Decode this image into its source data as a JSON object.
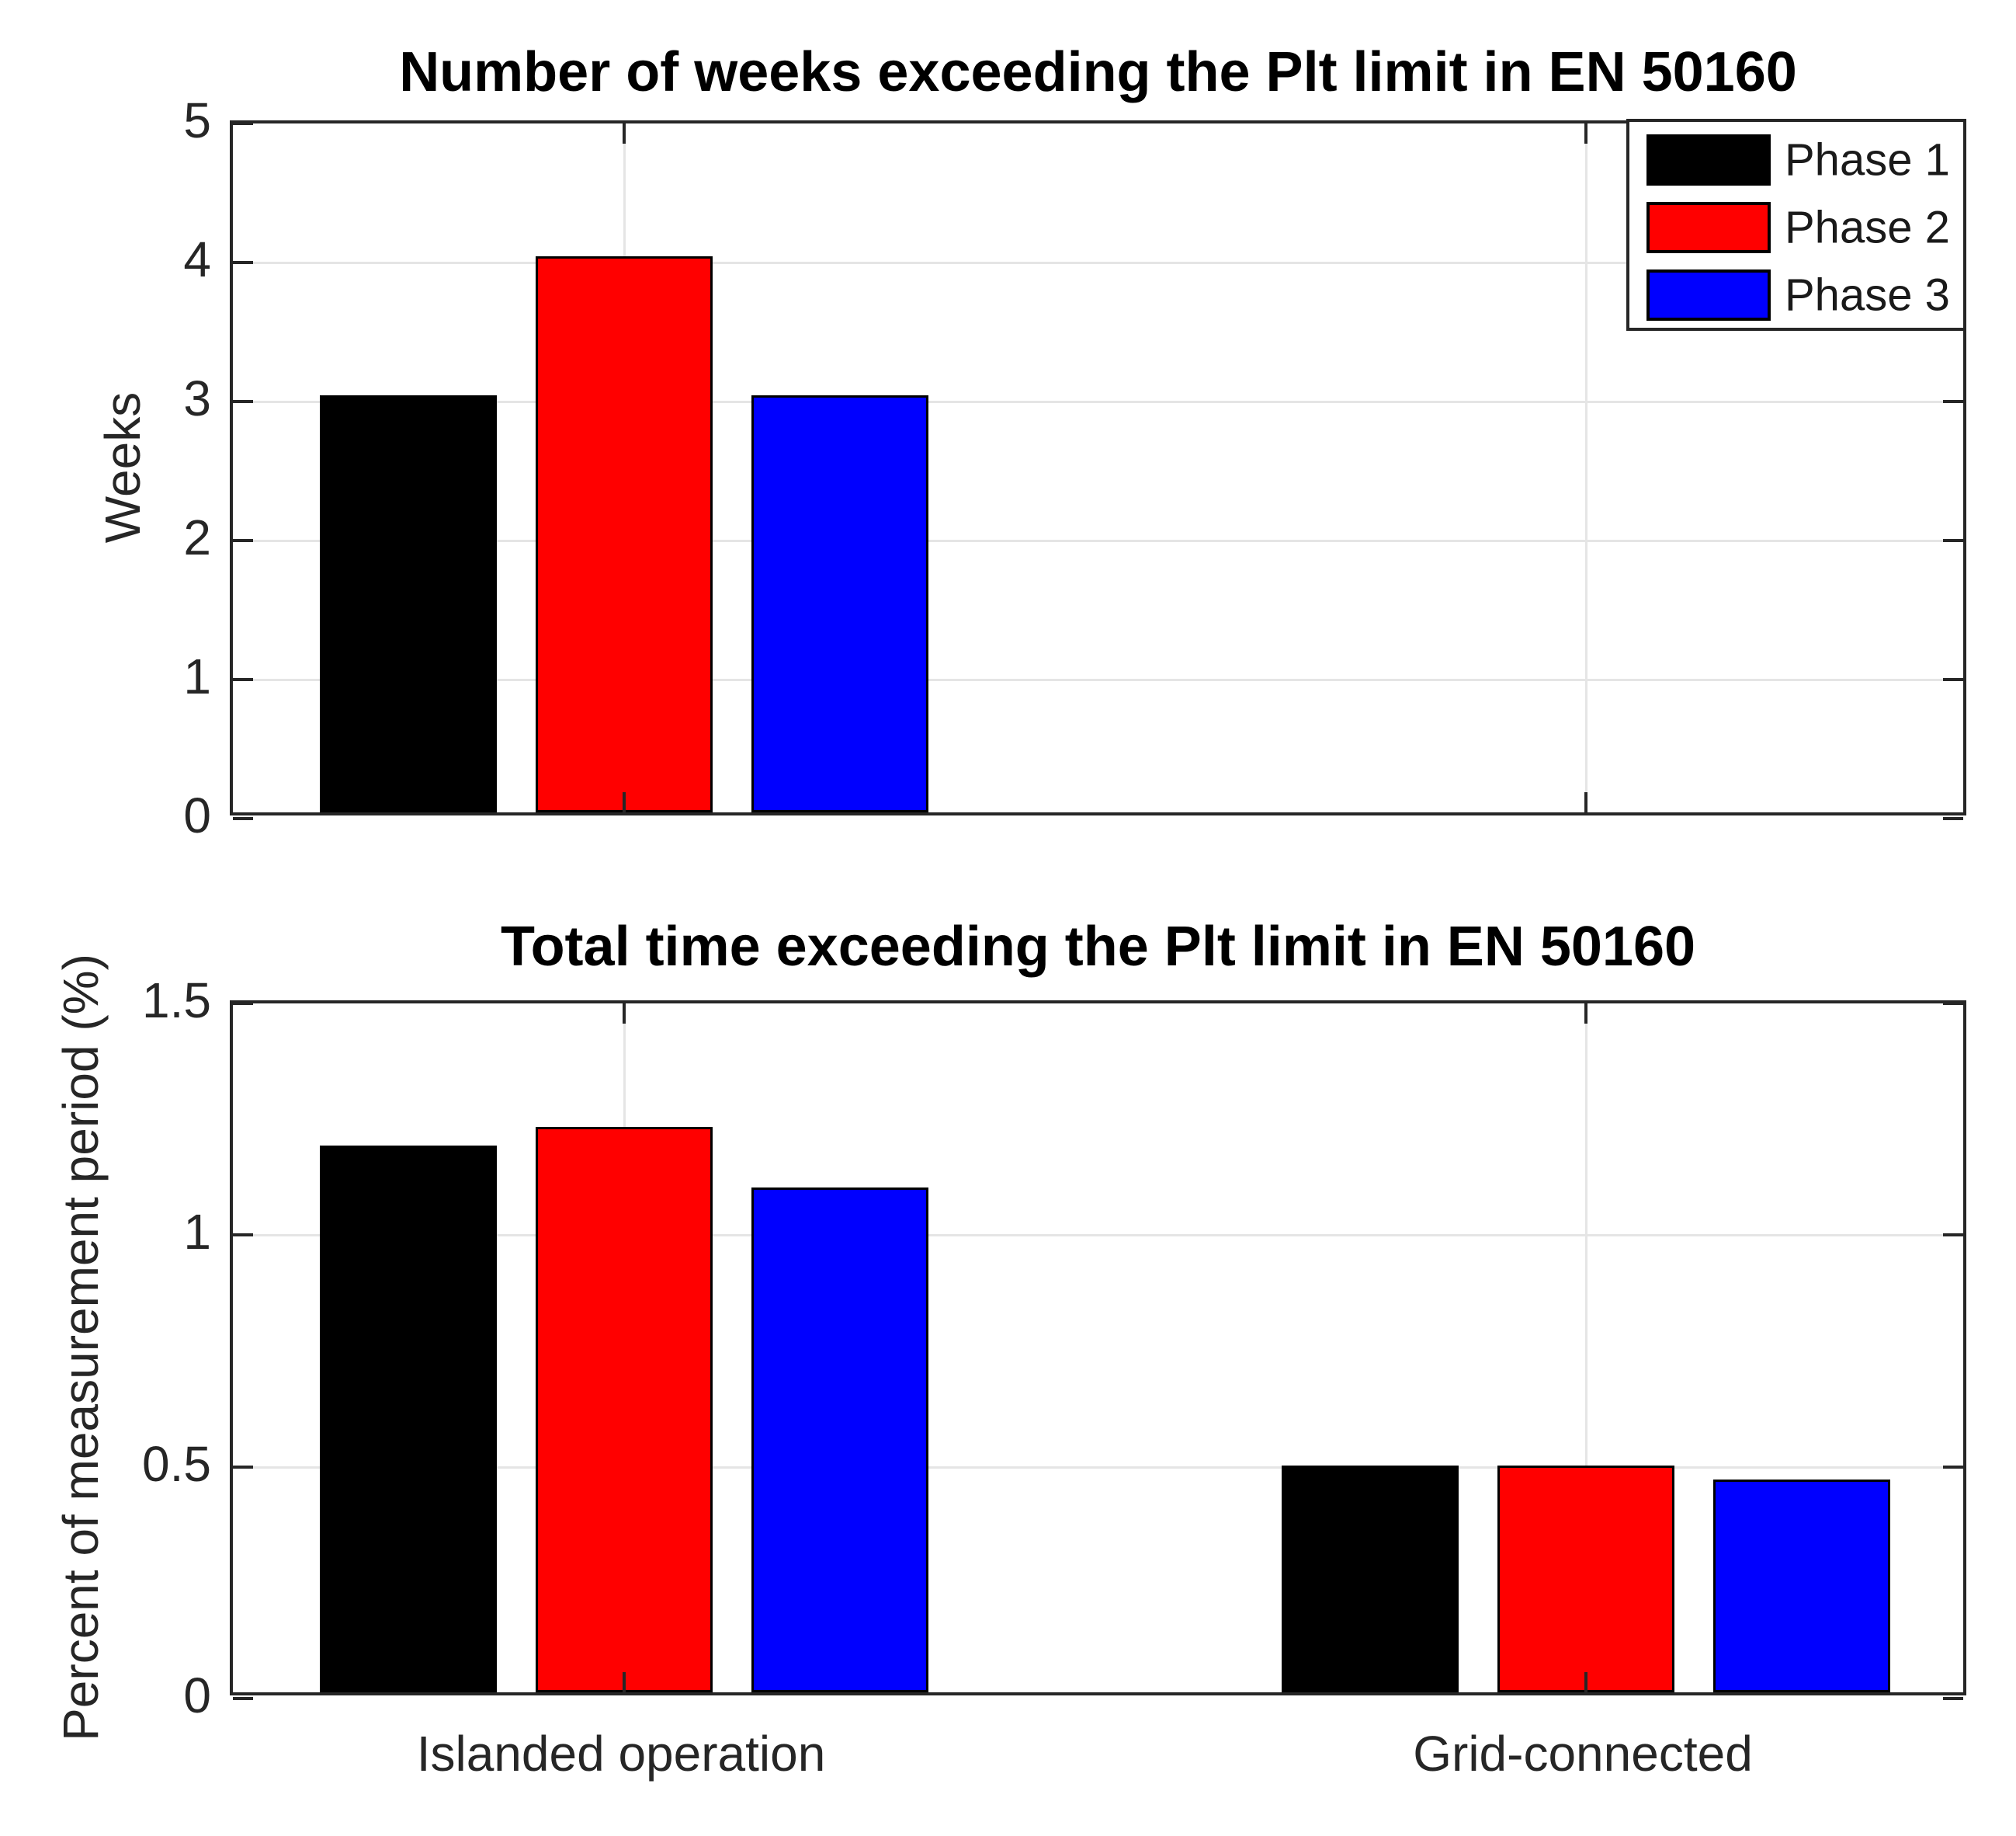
{
  "figure": {
    "background": "#ffffff",
    "axis_color": "#262626",
    "grid_color": "#e5e5e5"
  },
  "legend": {
    "position": "top-right-inside-first-axes",
    "items": [
      {
        "label": "Phase 1",
        "color": "#000000"
      },
      {
        "label": "Phase 2",
        "color": "#ff0000"
      },
      {
        "label": "Phase 3",
        "color": "#0000ff"
      }
    ]
  },
  "chart_data": [
    {
      "type": "bar",
      "title": "Number of weeks exceeding the Plt limit in EN 50160",
      "ylabel": "Weeks",
      "xlabel": "",
      "categories": [
        "Islanded operation",
        "Grid-connected"
      ],
      "show_x_labels": false,
      "ylim": [
        0,
        5
      ],
      "yticks": [
        0,
        1,
        2,
        3,
        4,
        5
      ],
      "ytick_labels": [
        "0",
        "1",
        "2",
        "3",
        "4",
        "5"
      ],
      "grid": true,
      "legend_visible": true,
      "series": [
        {
          "name": "Phase 1",
          "color": "#000000",
          "values": [
            3,
            0
          ]
        },
        {
          "name": "Phase 2",
          "color": "#ff0000",
          "values": [
            4,
            0
          ]
        },
        {
          "name": "Phase 3",
          "color": "#0000ff",
          "values": [
            3,
            0
          ]
        }
      ]
    },
    {
      "type": "bar",
      "title": "Total time exceeding the Plt limit in EN 50160",
      "ylabel": "Percent of measurement period (%)",
      "xlabel": "",
      "categories": [
        "Islanded operation",
        "Grid-connected"
      ],
      "show_x_labels": true,
      "ylim": [
        0,
        1.5
      ],
      "yticks": [
        0,
        0.5,
        1,
        1.5
      ],
      "ytick_labels": [
        "0",
        "0.5",
        "1",
        "1.5"
      ],
      "grid": true,
      "legend_visible": false,
      "series": [
        {
          "name": "Phase 1",
          "color": "#000000",
          "values": [
            1.18,
            0.49
          ]
        },
        {
          "name": "Phase 2",
          "color": "#ff0000",
          "values": [
            1.22,
            0.49
          ]
        },
        {
          "name": "Phase 3",
          "color": "#0000ff",
          "values": [
            1.09,
            0.46
          ]
        }
      ]
    }
  ]
}
